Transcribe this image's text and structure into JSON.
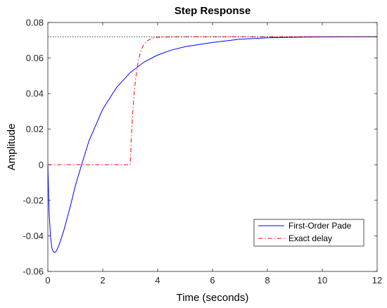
{
  "chart_data": {
    "type": "line",
    "title": "Step Response",
    "xlabel": "Time (seconds)",
    "ylabel": "Amplitude",
    "xlim": [
      0,
      12
    ],
    "ylim": [
      -0.06,
      0.08
    ],
    "xticks": [
      0,
      2,
      4,
      6,
      8,
      10,
      12
    ],
    "yticks": [
      -0.06,
      -0.04,
      -0.02,
      0,
      0.02,
      0.04,
      0.06,
      0.08
    ],
    "xtick_labels": [
      "0",
      "2",
      "4",
      "6",
      "8",
      "10",
      "12"
    ],
    "ytick_labels": [
      "-0.06",
      "-0.04",
      "-0.02",
      "0",
      "0.02",
      "0.04",
      "0.06",
      "0.08"
    ],
    "steady_state": 0.072,
    "grid": false,
    "legend_position": "bottom-right",
    "series": [
      {
        "name": "First-Order Pade",
        "color": "#0000ff",
        "style": "solid",
        "x": [
          0,
          0.05,
          0.1,
          0.15,
          0.2,
          0.25,
          0.3,
          0.4,
          0.5,
          0.6,
          0.8,
          1.0,
          1.2,
          1.5,
          2.0,
          2.5,
          3.0,
          3.5,
          4.0,
          4.5,
          5.0,
          6.0,
          7.0,
          8.0,
          9.0,
          10.0,
          11.0,
          12.0
        ],
        "y": [
          0,
          -0.028,
          -0.041,
          -0.047,
          -0.049,
          -0.0493,
          -0.0488,
          -0.0455,
          -0.041,
          -0.036,
          -0.0245,
          -0.012,
          -0.0015,
          0.0135,
          0.0312,
          0.0434,
          0.0518,
          0.0577,
          0.0617,
          0.0645,
          0.0664,
          0.0688,
          0.0706,
          0.0714,
          0.0717,
          0.0719,
          0.072,
          0.072
        ]
      },
      {
        "name": "Exact delay",
        "color": "#ff0000",
        "style": "dashdot",
        "x": [
          0,
          3.0,
          3.05,
          3.1,
          3.15,
          3.2,
          3.3,
          3.4,
          3.5,
          3.6,
          3.8,
          4.0,
          5.0,
          6.0,
          8.0,
          10.0,
          12.0
        ],
        "y": [
          0,
          0,
          0.0176,
          0.0309,
          0.041,
          0.0486,
          0.0589,
          0.0645,
          0.0677,
          0.0695,
          0.0712,
          0.0717,
          0.072,
          0.072,
          0.072,
          0.072,
          0.072
        ]
      }
    ]
  }
}
